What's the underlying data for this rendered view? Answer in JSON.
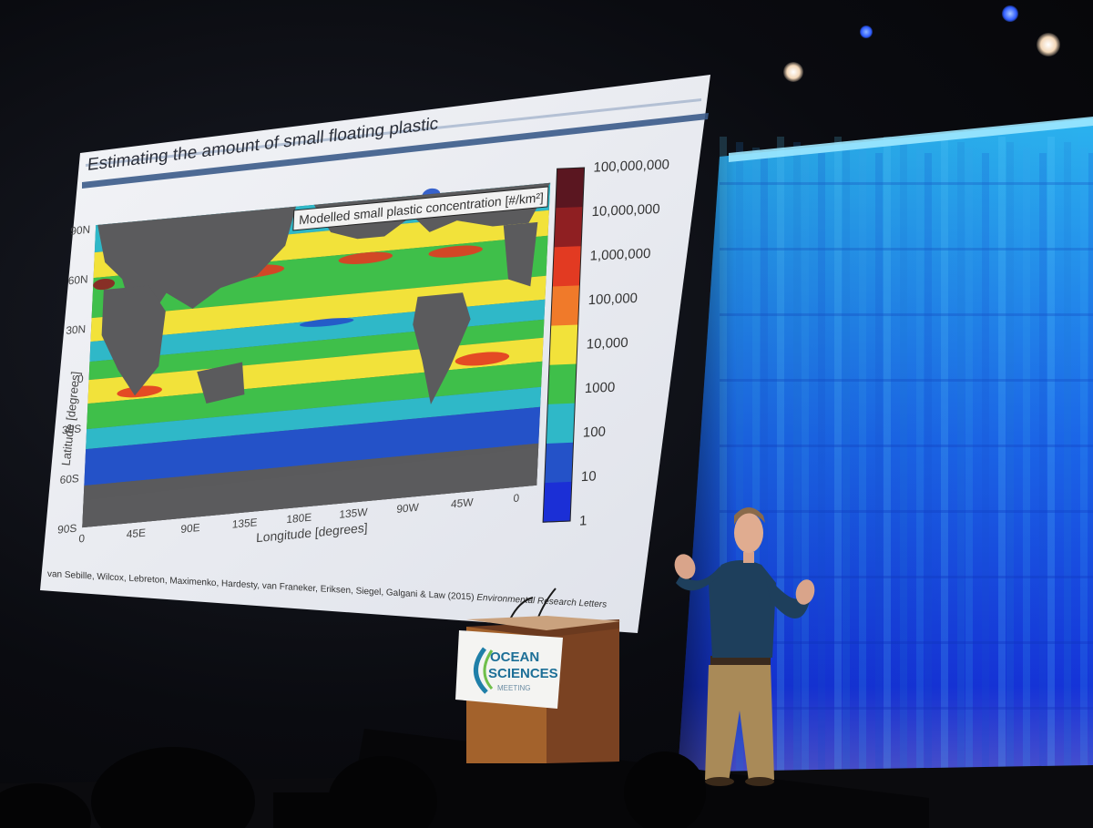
{
  "slide": {
    "title": "Estimating the amount of small floating plastic",
    "map_title": "Modelled small plastic concentration [#/km²]",
    "ylabel": "Latitude [degrees]",
    "xlabel": "Longitude [degrees]",
    "lat_ticks": [
      "90N",
      "60N",
      "30N",
      "0",
      "30S",
      "60S",
      "90S"
    ],
    "lon_ticks": [
      "0",
      "45E",
      "90E",
      "135E",
      "180E",
      "135W",
      "90W",
      "45W",
      "0"
    ],
    "colorbar_labels": [
      "100,000,000",
      "10,000,000",
      "1,000,000",
      "100,000",
      "10,000",
      "1000",
      "100",
      "10",
      "1"
    ],
    "colorbar_colors": [
      "#5a1620",
      "#8f1f22",
      "#e23a22",
      "#f07a2a",
      "#f2e23a",
      "#3fbf4a",
      "#2fb8c8",
      "#2452c8",
      "#1b2fd6"
    ],
    "citation": "van Sebille, Wilcox, Lebreton, Maximenko, Hardesty, van Franeker, Eriksen, Siegel, Galgani & Law (2015)",
    "citation_journal": "Environmental Research Letters"
  },
  "podium": {
    "logo_line1": "OCEAN",
    "logo_line2": "SCIENCES",
    "logo_line3": "MEETING"
  }
}
